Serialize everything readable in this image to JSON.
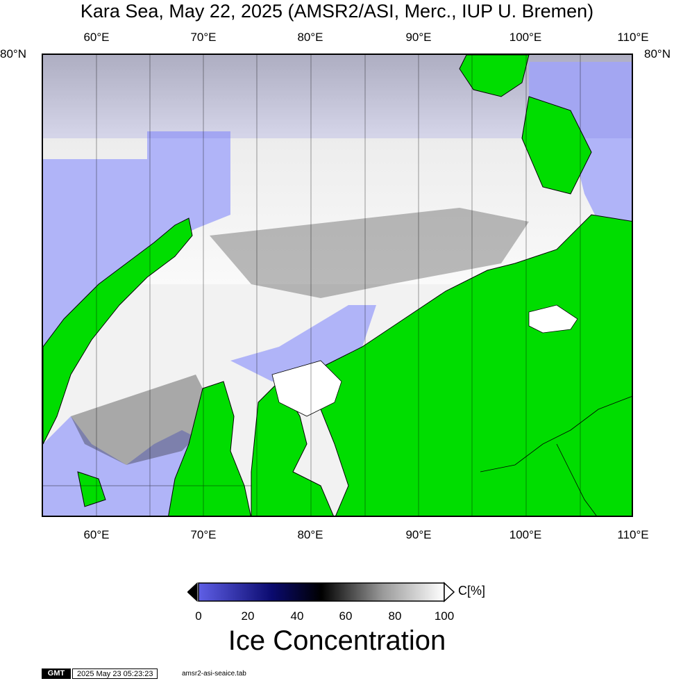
{
  "title": "Kara Sea, May 22, 2025 (AMSR2/ASI, Merc., IUP U. Bremen)",
  "axes": {
    "lon_labels": [
      "60°E",
      "70°E",
      "80°E",
      "90°E",
      "100°E",
      "110°E"
    ],
    "lat_labels": [
      "80°N"
    ]
  },
  "colors": {
    "land": "#00dd00",
    "open_water": "#b0b4f8",
    "ice_low": "#5f5fe6",
    "ice_mid": "#000000",
    "ice_high": "#ffffff"
  },
  "colorbar": {
    "ticks": [
      "0",
      "20",
      "40",
      "60",
      "80",
      "100"
    ],
    "unit": "C[%]",
    "label": "Ice Concentration"
  },
  "footer": {
    "logo": "GMT",
    "timestamp": "2025 May 23 05:23:23",
    "filename": "amsr2-asi-seaice.tab"
  }
}
